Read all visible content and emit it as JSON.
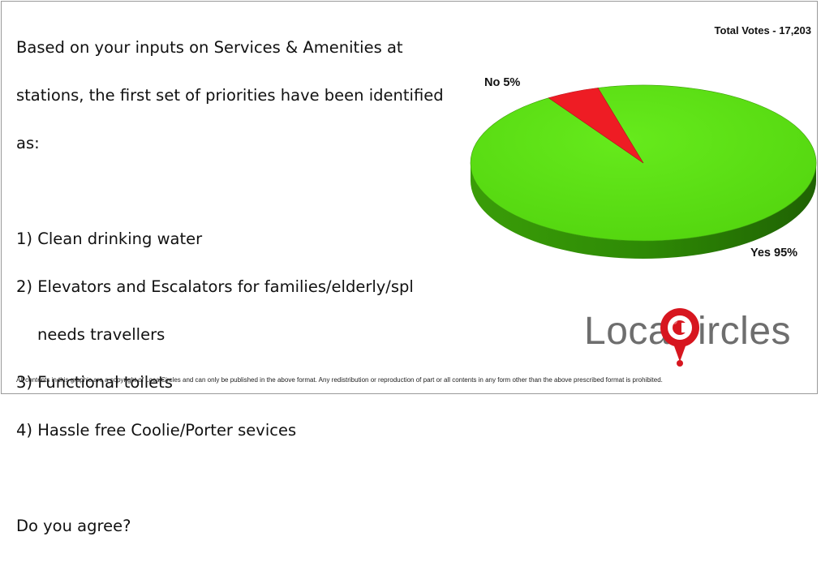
{
  "question": {
    "lines": [
      "Based on your inputs on Services & Amenities at",
      "stations, the first set of priorities have been identified",
      "as:",
      "",
      "1) Clean drinking water",
      "2) Elevators and Escalators for families/elderly/spl",
      "needs travellers",
      "3) Functional toilets",
      "4) Hassle free Coolie/Porter sevices",
      "",
      "Do you agree?"
    ]
  },
  "total_votes_label": "Total Votes - 17,203",
  "chart_data": {
    "type": "pie",
    "style": "3d",
    "slices": [
      {
        "label": "Yes 95%",
        "value": 95,
        "color": "#5ce012"
      },
      {
        "label": "No 5%",
        "value": 5,
        "color": "#ee1c24"
      }
    ]
  },
  "logo": {
    "text_left": "Local",
    "text_right": "ircles",
    "accent": "#d7161f"
  },
  "copyright": "All contents in this graphic are a copyright of LocalCircles and can only be published in the above format. Any redistribution or reproduction of part or all contents in any form other than the above prescribed format is prohibited."
}
